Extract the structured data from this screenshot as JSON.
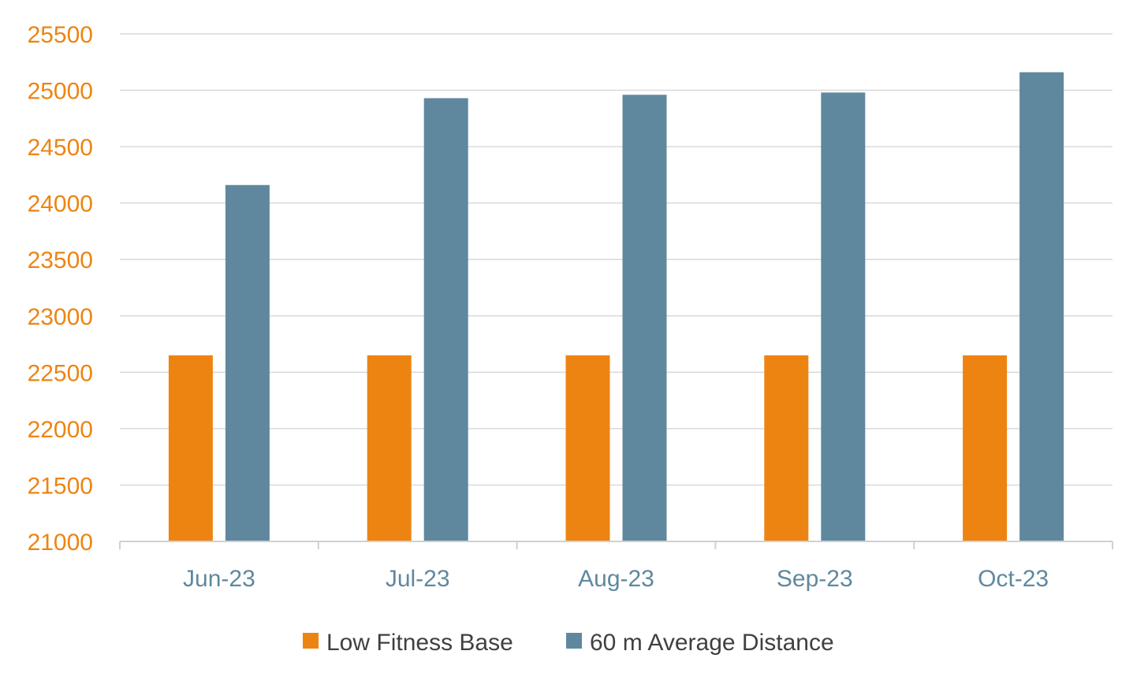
{
  "chart_data": {
    "type": "bar",
    "categories": [
      "Jun-23",
      "Jul-23",
      "Aug-23",
      "Sep-23",
      "Oct-23"
    ],
    "series": [
      {
        "name": "Low Fitness Base",
        "values": [
          22650,
          22650,
          22650,
          22650,
          22650
        ],
        "color": "#ED8412"
      },
      {
        "name": "60 m Average Distance",
        "values": [
          24160,
          24930,
          24960,
          24980,
          25160
        ],
        "color": "#5F889F"
      }
    ],
    "ylim": [
      21000,
      25500
    ],
    "yticks": [
      "21000",
      "21500",
      "22000",
      "22500",
      "23000",
      "23500",
      "24000",
      "24500",
      "25000",
      "25500"
    ],
    "grid": true,
    "legend_position": "bottom",
    "ytick_color": "#ED8412",
    "xtick_color": "#5F889F"
  }
}
